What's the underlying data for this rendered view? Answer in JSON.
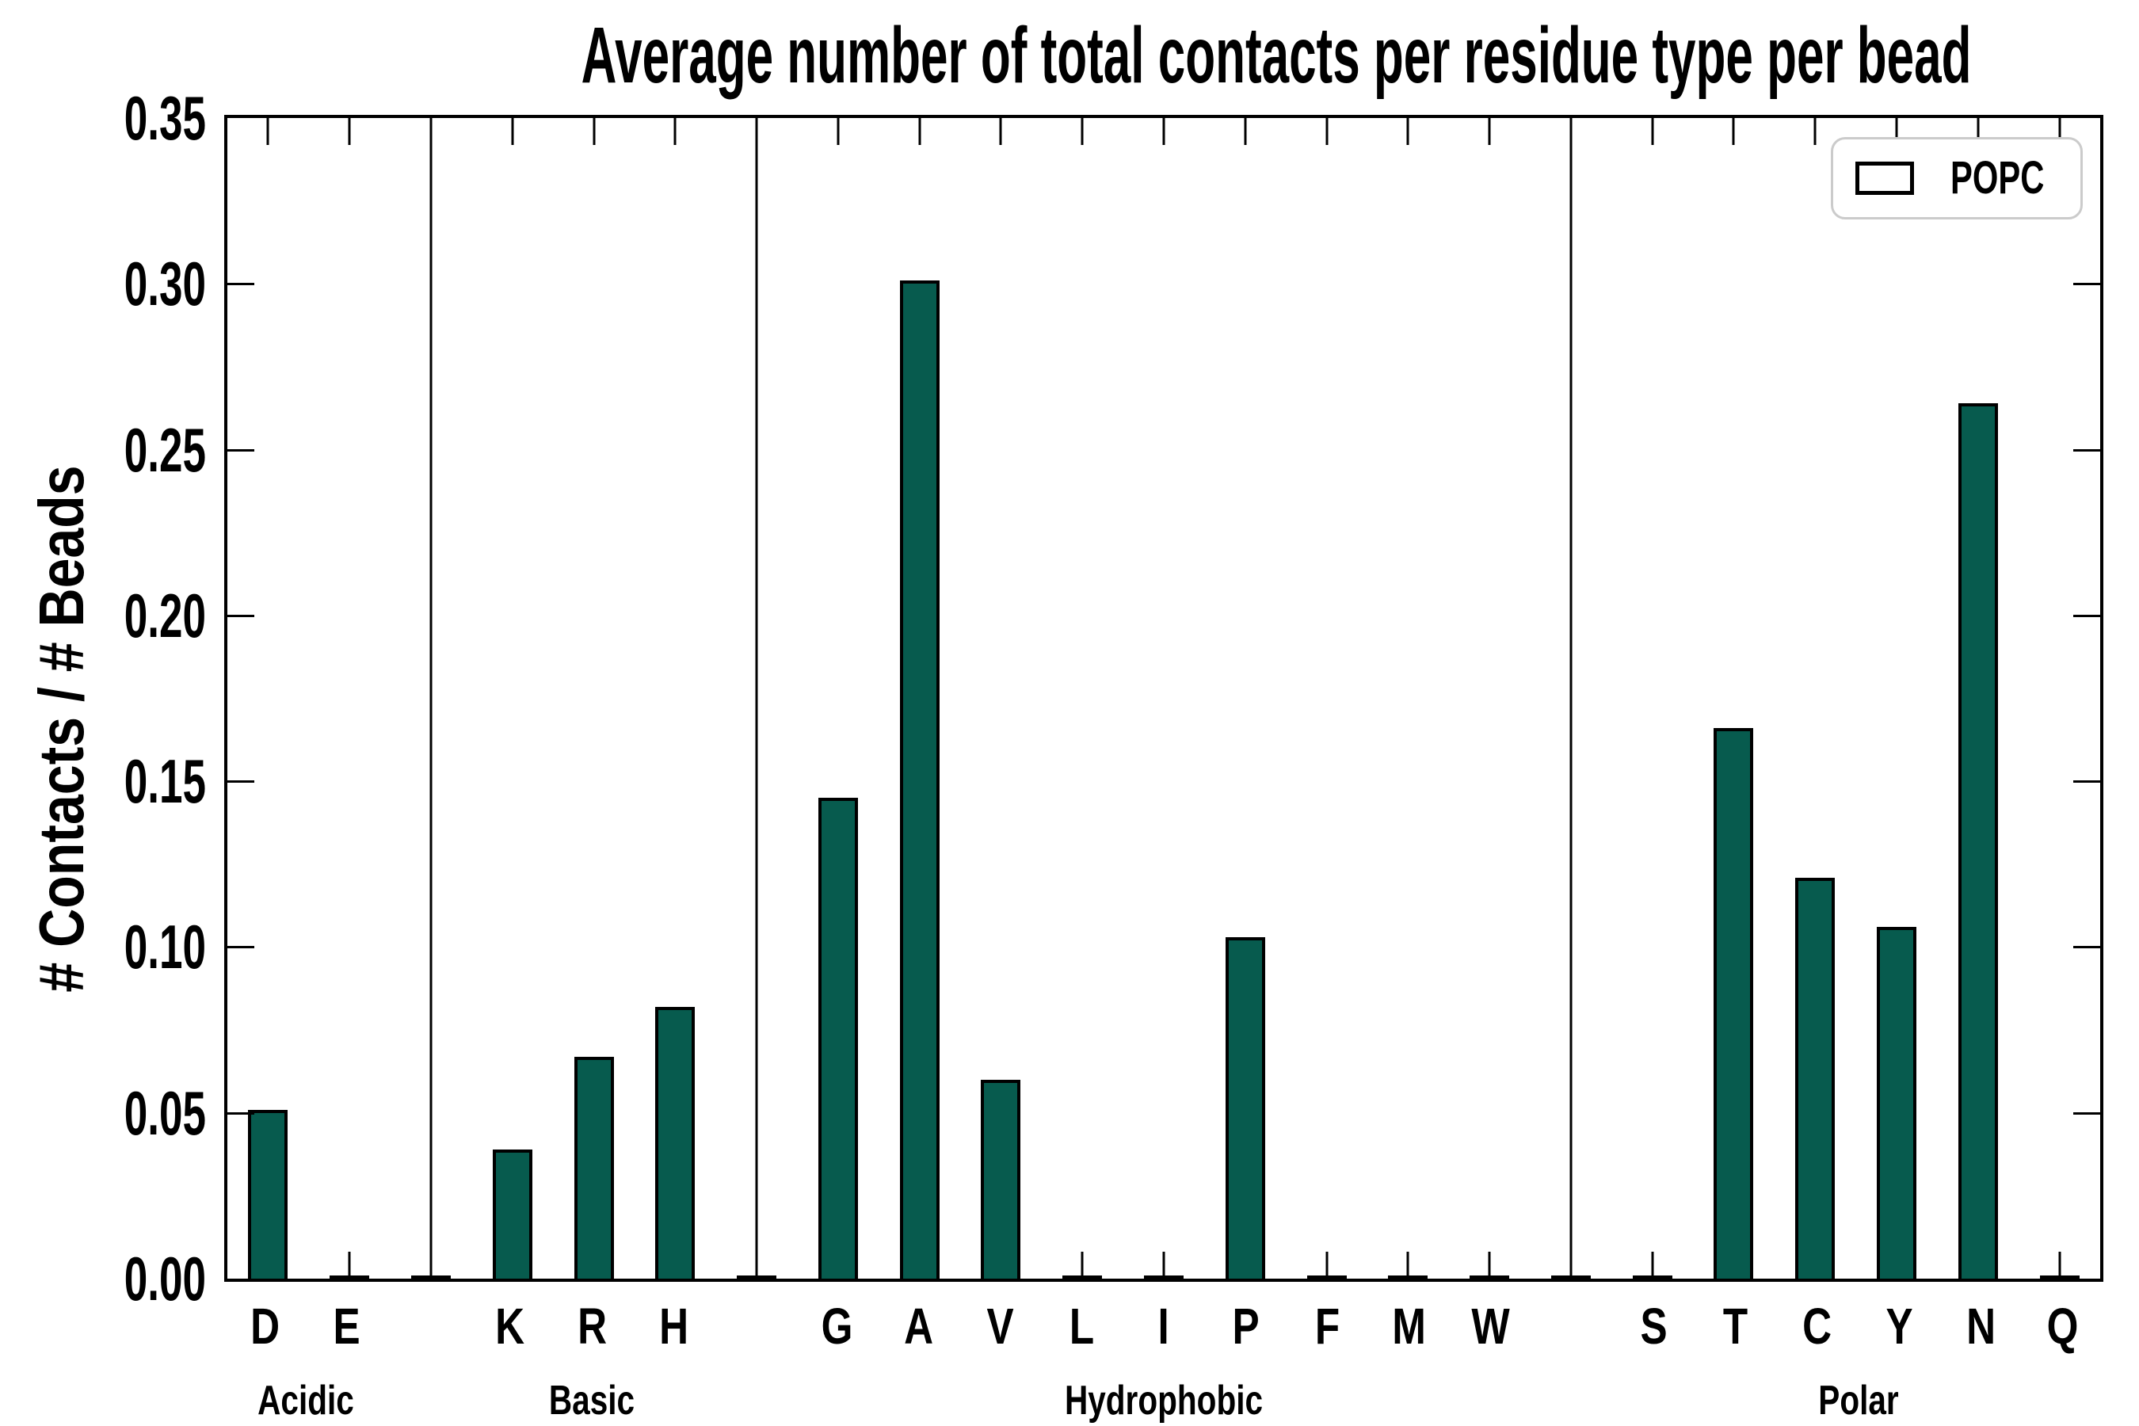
{
  "title": "Average number of total contacts per residue type per bead",
  "ylabel": "# Contacts / # Beads",
  "legend": {
    "label": "POPC",
    "position": "upper right"
  },
  "colors": {
    "bar_fill": "#075B4E",
    "bar_edge": "#000000",
    "axis": "#000000",
    "legend_border": "#cbcbcb",
    "background": "#ffffff"
  },
  "chart_data": {
    "type": "bar",
    "series_name": "POPC",
    "ylim": [
      0,
      0.35
    ],
    "ytick_labels": [
      "0.00",
      "0.05",
      "0.10",
      "0.15",
      "0.20",
      "0.25",
      "0.30",
      "0.35"
    ],
    "ytick_values": [
      0.0,
      0.05,
      0.1,
      0.15,
      0.2,
      0.25,
      0.3,
      0.35
    ],
    "grid": false,
    "legend_position": "upper right",
    "gap_placeholder_value": 0.0009,
    "groups": [
      {
        "label": "Acidic",
        "categories": [
          "D",
          "E"
        ],
        "values": [
          0.051,
          0.001
        ]
      },
      {
        "label": "Basic",
        "categories": [
          "K",
          "R",
          "H"
        ],
        "values": [
          0.039,
          0.067,
          0.082
        ]
      },
      {
        "label": "Hydrophobic",
        "categories": [
          "G",
          "A",
          "V",
          "L",
          "I",
          "P",
          "F",
          "M",
          "W"
        ],
        "values": [
          0.145,
          0.301,
          0.06,
          0.001,
          0.001,
          0.103,
          0.001,
          0.0005,
          0.0005
        ]
      },
      {
        "label": "Polar",
        "categories": [
          "S",
          "T",
          "C",
          "Y",
          "N",
          "Q"
        ],
        "values": [
          0.001,
          0.166,
          0.121,
          0.106,
          0.264,
          0.001
        ]
      }
    ]
  }
}
